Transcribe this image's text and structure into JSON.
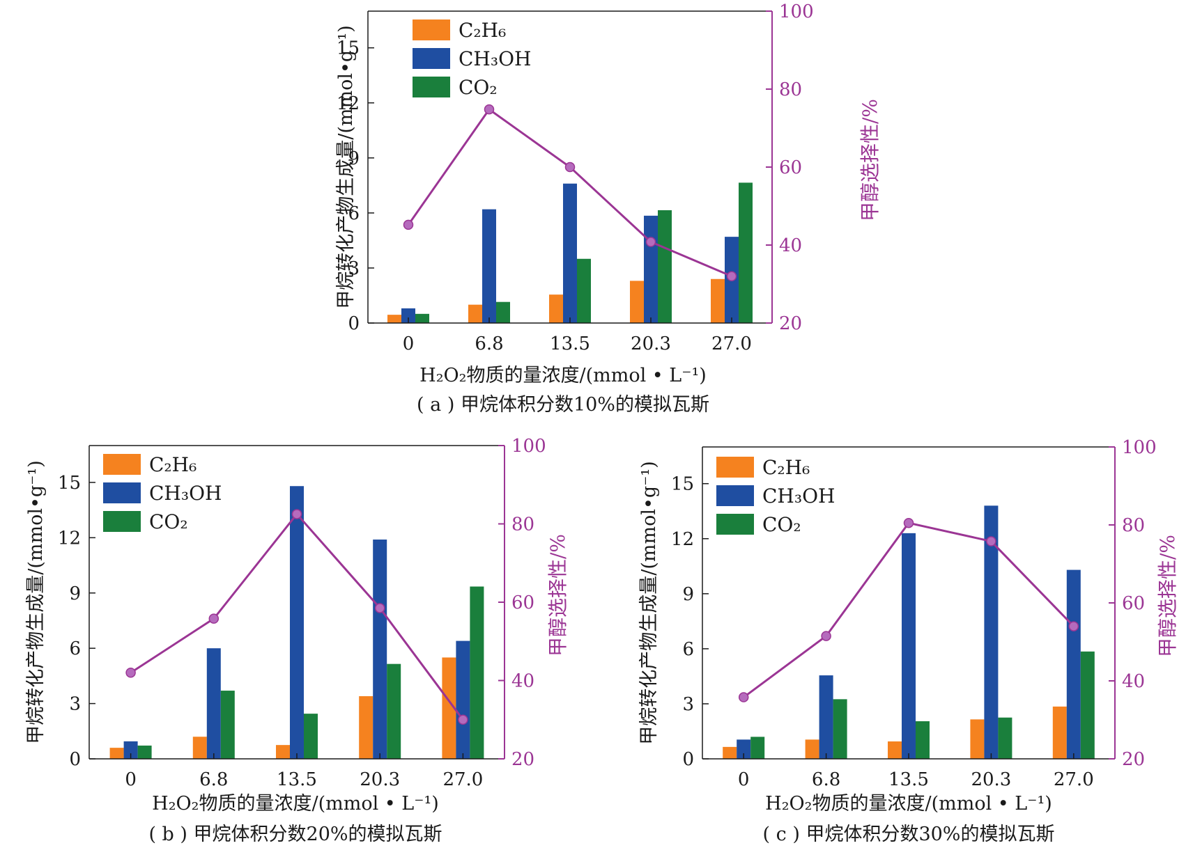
{
  "colors": {
    "C2H6": "#f5821f",
    "CH3OH": "#1f4ea1",
    "CO2": "#1a7f3c",
    "selectivity": "#9b3594",
    "marker": "#b56bbd",
    "axis": "#1a1a1a"
  },
  "chart_data": [
    {
      "type": "bar",
      "title": "",
      "caption": "( a ) 甲烷体积分数10%的模拟瓦斯",
      "categories": [
        "0",
        "6.8",
        "13.5",
        "20.3",
        "27.0"
      ],
      "xlabel": "H₂O₂物质的量浓度/(mmol • L⁻¹)",
      "ylabel": "甲烷转化产物生成量/(mmol•g⁻¹)",
      "y2label": "甲醇选择性/%",
      "ylim": [
        0,
        17
      ],
      "y2lim": [
        20,
        100
      ],
      "yticks": [
        "0",
        "3",
        "6",
        "9",
        "12",
        "15"
      ],
      "y2ticks": [
        "20",
        "40",
        "60",
        "80",
        "100"
      ],
      "legend_position": "top-left",
      "series": [
        {
          "name": "C₂H₆",
          "values": [
            0.45,
            1.0,
            1.55,
            2.3,
            2.4
          ]
        },
        {
          "name": "CH₃OH",
          "values": [
            0.8,
            6.2,
            7.6,
            5.85,
            4.7
          ]
        },
        {
          "name": "CO₂",
          "values": [
            0.5,
            1.15,
            3.5,
            6.15,
            7.65
          ]
        }
      ],
      "line": {
        "values": [
          45.2,
          74.8,
          60.0,
          40.8,
          32.0
        ]
      }
    },
    {
      "type": "bar",
      "title": "",
      "caption": "( b ) 甲烷体积分数20%的模拟瓦斯",
      "categories": [
        "0",
        "6.8",
        "13.5",
        "20.3",
        "27.0"
      ],
      "xlabel": "H₂O₂物质的量浓度/(mmol • L⁻¹)",
      "ylabel": "甲烷转化产物生成量/(mmol•g⁻¹)",
      "y2label": "甲醇选择性/%",
      "ylim": [
        0,
        17
      ],
      "y2lim": [
        20,
        100
      ],
      "yticks": [
        "0",
        "3",
        "6",
        "9",
        "12",
        "15"
      ],
      "y2ticks": [
        "20",
        "40",
        "60",
        "80",
        "100"
      ],
      "legend_position": "top-left",
      "series": [
        {
          "name": "C₂H₆",
          "values": [
            0.6,
            1.2,
            0.75,
            3.4,
            5.5
          ]
        },
        {
          "name": "CH₃OH",
          "values": [
            0.95,
            6.0,
            14.8,
            11.9,
            6.4
          ]
        },
        {
          "name": "CO₂",
          "values": [
            0.72,
            3.7,
            2.45,
            5.15,
            9.35
          ]
        }
      ],
      "line": {
        "values": [
          42.0,
          55.8,
          82.5,
          58.5,
          30.0
        ]
      }
    },
    {
      "type": "bar",
      "title": "",
      "caption": "( c ) 甲烷体积分数30%的模拟瓦斯",
      "categories": [
        "0",
        "6.8",
        "13.5",
        "20.3",
        "27.0"
      ],
      "xlabel": "H₂O₂物质的量浓度/(mmol • L⁻¹)",
      "ylabel": "甲烷转化产物生成量/(mmol•g⁻¹)",
      "y2label": "甲醇选择性/%",
      "ylim": [
        0,
        17
      ],
      "y2lim": [
        20,
        100
      ],
      "yticks": [
        "0",
        "3",
        "6",
        "9",
        "12",
        "15"
      ],
      "y2ticks": [
        "20",
        "40",
        "60",
        "80",
        "100"
      ],
      "legend_position": "top-left",
      "series": [
        {
          "name": "C₂H₆",
          "values": [
            0.65,
            1.05,
            0.95,
            2.15,
            2.85
          ]
        },
        {
          "name": "CH₃OH",
          "values": [
            1.05,
            4.55,
            12.3,
            13.8,
            10.3
          ]
        },
        {
          "name": "CO₂",
          "values": [
            1.2,
            3.25,
            2.05,
            2.25,
            5.85
          ]
        }
      ],
      "line": {
        "values": [
          35.8,
          51.5,
          80.5,
          75.8,
          54.0
        ]
      }
    }
  ]
}
